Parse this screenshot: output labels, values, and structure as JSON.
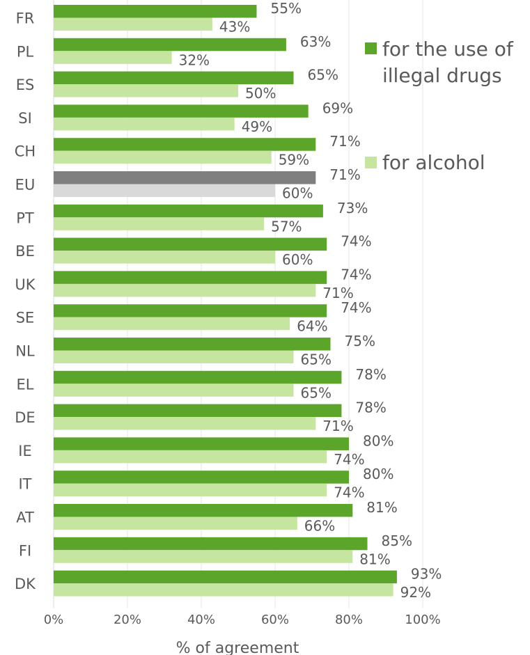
{
  "chart_data": {
    "type": "bar",
    "orientation": "horizontal",
    "categories": [
      "FR",
      "PL",
      "ES",
      "SI",
      "CH",
      "EU",
      "PT",
      "BE",
      "UK",
      "SE",
      "NL",
      "EL",
      "DE",
      "IE",
      "IT",
      "AT",
      "FI",
      "DK"
    ],
    "series": [
      {
        "name": "for the use of illegal drugs",
        "values": [
          55,
          63,
          65,
          69,
          71,
          71,
          73,
          74,
          74,
          74,
          75,
          78,
          78,
          80,
          80,
          81,
          85,
          93
        ],
        "labels": [
          "55%",
          "63%",
          "65%",
          "69%",
          "71%",
          "71%",
          "73%",
          "74%",
          "74%",
          "74%",
          "75%",
          "78%",
          "78%",
          "80%",
          "80%",
          "81%",
          "85%",
          "93%"
        ],
        "color": "#5aa52a",
        "highlight_color": "#7f7f7f"
      },
      {
        "name": "for alcohol",
        "values": [
          43,
          32,
          50,
          49,
          59,
          60,
          57,
          60,
          71,
          64,
          65,
          65,
          71,
          74,
          74,
          66,
          81,
          92
        ],
        "labels": [
          "43%",
          "32%",
          "50%",
          "49%",
          "59%",
          "60%",
          "57%",
          "60%",
          "71%",
          "64%",
          "65%",
          "65%",
          "71%",
          "74%",
          "74%",
          "66%",
          "81%",
          "92%"
        ],
        "color": "#c6e5a0",
        "highlight_color": "#d9d9d9"
      }
    ],
    "highlight_category": "EU",
    "xlabel": "% of agreement",
    "ylabel": "",
    "xlim": [
      0,
      100
    ],
    "x_ticks": [
      "0%",
      "20%",
      "40%",
      "60%",
      "80%",
      "100%"
    ],
    "grid": "vertical",
    "legend_position": "right"
  },
  "legend": {
    "line1": "for the use of",
    "line2": "illegal drugs",
    "alcohol": "for alcohol"
  }
}
